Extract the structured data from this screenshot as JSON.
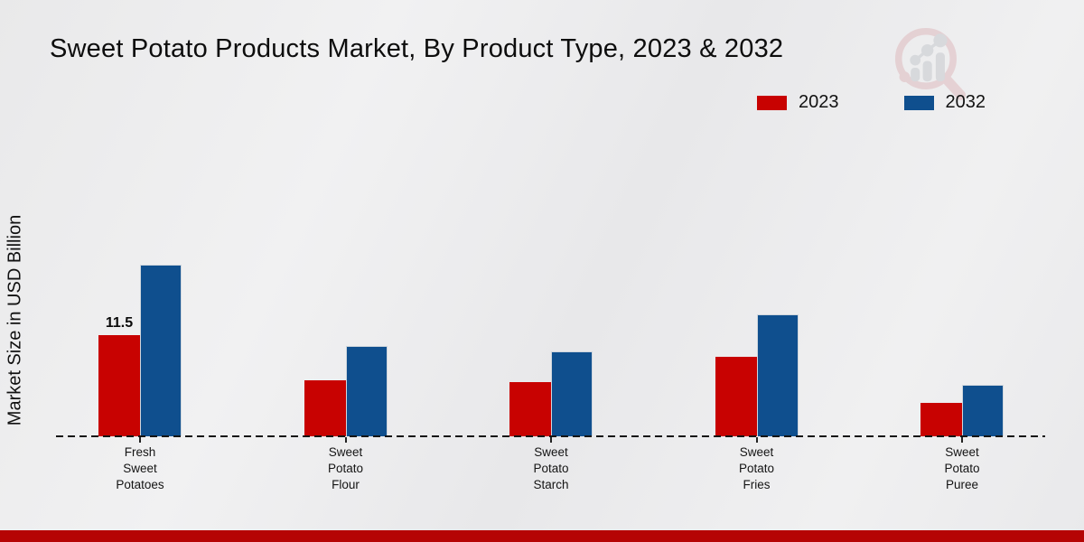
{
  "title": "Sweet Potato Products Market, By Product Type, 2023 & 2032",
  "ylabel": "Market Size in USD Billion",
  "legend": {
    "items": [
      {
        "label": "2023",
        "color": "#c80201"
      },
      {
        "label": "2032",
        "color": "#0f4f8e"
      }
    ]
  },
  "colors": {
    "series_2023": "#c80201",
    "series_2032": "#0f4f8e",
    "bottom_strip": "#b50404",
    "baseline": "#151515",
    "logo_pink": "#ddb6ba",
    "logo_gray": "#c3c6cb"
  },
  "annotations": {
    "first_bar_label": "11.5"
  },
  "chart_data": {
    "type": "bar",
    "title": "Sweet Potato Products Market, By Product Type, 2023 & 2032",
    "xlabel": "",
    "ylabel": "Market Size in USD Billion",
    "categories": [
      "Fresh Sweet Potatoes",
      "Sweet Potato Flour",
      "Sweet Potato Starch",
      "Sweet Potato Fries",
      "Sweet Potato Puree"
    ],
    "category_lines": [
      [
        "Fresh",
        "Sweet",
        "Potatoes"
      ],
      [
        "Sweet",
        "Potato",
        "Flour"
      ],
      [
        "Sweet",
        "Potato",
        "Starch"
      ],
      [
        "Sweet",
        "Potato",
        "Fries"
      ],
      [
        "Sweet",
        "Potato",
        "Puree"
      ]
    ],
    "series": [
      {
        "name": "2023",
        "color": "#c80201",
        "values": [
          11.5,
          6.4,
          6.2,
          9.0,
          3.8
        ]
      },
      {
        "name": "2032",
        "color": "#0f4f8e",
        "values": [
          19.5,
          10.3,
          9.7,
          13.9,
          5.9
        ]
      }
    ],
    "bar_labels": [
      {
        "series": "2023",
        "category": "Fresh Sweet Potatoes",
        "text": "11.5"
      }
    ],
    "ylim": [
      0,
      21
    ],
    "grid": false,
    "legend_position": "top-right",
    "baseline_style": "dashed"
  }
}
